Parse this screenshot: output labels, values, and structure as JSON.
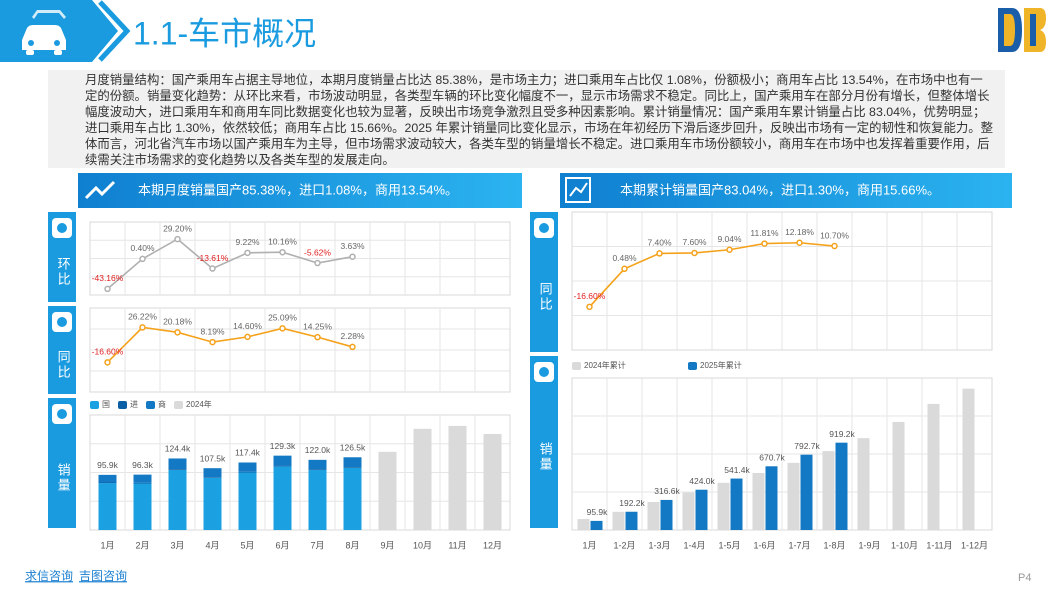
{
  "header": {
    "title": "1.1-车市概况"
  },
  "summary": "月度销量结构：国产乘用车占据主导地位，本期月度销量占比达 85.38%，是市场主力；进口乘用车占比仅 1.08%，份额极小；商用车占比 13.54%，在市场中也有一定的份额。销量变化趋势：从环比来看，市场波动明显，各类型车辆的环比变化幅度不一，显示市场需求不稳定。同比上，国产乘用车在部分月份有增长，但整体增长幅度波动大，进口乘用车和商用车同比数据变化也较为显著，反映出市场竞争激烈且受多种因素影响。累计销量情况：国产乘用车累计销量占比 83.04%，优势明显；进口乘用车占比 1.30%，依然较低；商用车占比 15.66%。2025 年累计销量同比变化显示，市场在年初经历下滑后逐步回升，反映出市场有一定的韧性和恢复能力。整体而言，河北省汽车市场以国产乘用车为主导，但市场需求波动较大，各类车型的销量增长不稳定。进口乘用车市场份额较小，商用车在市场中也发挥着重要作用，后续需关注市场需求的变化趋势以及各类车型的发展走向。",
  "left_banner": "本期月度销量国产85.38%，进口1.08%，商用13.54%。",
  "right_banner": "本期累计销量国产83.04%，进口1.30%，商用15.66%。",
  "side_labels": [
    "环比",
    "同比",
    "销量",
    "同比",
    "销量"
  ],
  "chart_data": [
    {
      "type": "line",
      "color": "#b0b0b0",
      "negative_label_color": "#e02020",
      "ylim": [
        -52,
        54
      ],
      "values": [
        -43.16,
        0.4,
        29.2,
        -13.61,
        9.22,
        10.16,
        -5.62,
        3.63
      ],
      "value_labels": [
        "-43.16%",
        "0.40%",
        "29.20%",
        "-13.61%",
        "9.22%",
        "10.16%",
        "-5.62%",
        "3.63%"
      ]
    },
    {
      "type": "line",
      "color": "#f5a21b",
      "negative_label_color": "#e02020",
      "ylim": [
        -53,
        50
      ],
      "values": [
        -16.6,
        26.22,
        20.18,
        8.19,
        14.6,
        25.09,
        14.25,
        2.28
      ],
      "value_labels": [
        "-16.60%",
        "26.22%",
        "20.18%",
        "8.19%",
        "14.60%",
        "25.09%",
        "14.25%",
        "2.28%"
      ]
    },
    {
      "type": "bar",
      "layout": "stacked",
      "ylim": [
        0,
        200
      ],
      "categories": [
        "1月",
        "2月",
        "3月",
        "4月",
        "5月",
        "6月",
        "7月",
        "8月",
        "9月",
        "10月",
        "11月",
        "12月"
      ],
      "series": [
        {
          "name": "国",
          "color": "#1ba1e2",
          "values": [
            81.6,
            80.9,
            104.5,
            90.8,
            100.0,
            110.6,
            104.3,
            108.0,
            null,
            null,
            null,
            null
          ]
        },
        {
          "name": "进",
          "color": "#0b5fa5",
          "values": [
            1.0,
            1.2,
            1.4,
            1.2,
            1.3,
            1.4,
            1.3,
            1.4,
            null,
            null,
            null,
            null
          ]
        },
        {
          "name": "商",
          "color": "#1479c4",
          "values": [
            13.3,
            14.2,
            18.5,
            15.5,
            16.1,
            17.3,
            16.4,
            17.1,
            null,
            null,
            null,
            null
          ]
        },
        {
          "name": "2024年",
          "color": "#dadada",
          "values": [
            null,
            null,
            null,
            null,
            null,
            null,
            null,
            null,
            136,
            176,
            181,
            167
          ]
        }
      ],
      "totals": [
        95.9,
        96.3,
        124.4,
        107.5,
        117.4,
        129.3,
        122.0,
        126.5
      ],
      "total_labels": [
        "95.9k",
        "96.3k",
        "124.4k",
        "107.5k",
        "117.4k",
        "129.3k",
        "122.0k",
        "126.5k"
      ]
    },
    {
      "type": "line",
      "color": "#f5a21b",
      "negative_label_color": "#e02020",
      "ylim": [
        -36,
        26
      ],
      "values": [
        -16.6,
        0.48,
        7.4,
        7.6,
        9.04,
        11.81,
        12.18,
        10.7
      ],
      "value_labels": [
        "-16.60%",
        "0.48%",
        "7.40%",
        "7.60%",
        "9.04%",
        "11.81%",
        "12.18%",
        "10.70%"
      ]
    },
    {
      "type": "bar",
      "layout": "grouped",
      "ylim": [
        0,
        1600
      ],
      "categories": [
        "1月",
        "1-2月",
        "1-3月",
        "1-4月",
        "1-5月",
        "1-6月",
        "1-7月",
        "1-8月",
        "1-9月",
        "1-10月",
        "1-11月",
        "1-12月"
      ],
      "series": [
        {
          "name": "2024年累计",
          "color": "#dadada",
          "values": [
            115.0,
            191.3,
            294.8,
            394.1,
            496.5,
            600.0,
            706.6,
            830.4,
            967,
            1137,
            1327,
            1488
          ]
        },
        {
          "name": "2025年累计",
          "color": "#1479c4",
          "values": [
            95.9,
            192.2,
            316.6,
            424.0,
            541.4,
            670.7,
            792.7,
            919.2,
            null,
            null,
            null,
            null
          ],
          "value_labels": [
            "95.9k",
            "192.2k",
            "316.6k",
            "424.0k",
            "541.4k",
            "670.7k",
            "792.7k",
            "919.2k",
            null,
            null,
            null,
            null
          ]
        }
      ]
    }
  ],
  "footer": {
    "links": [
      "求信咨询",
      "吉图咨询"
    ],
    "page": "P4"
  }
}
